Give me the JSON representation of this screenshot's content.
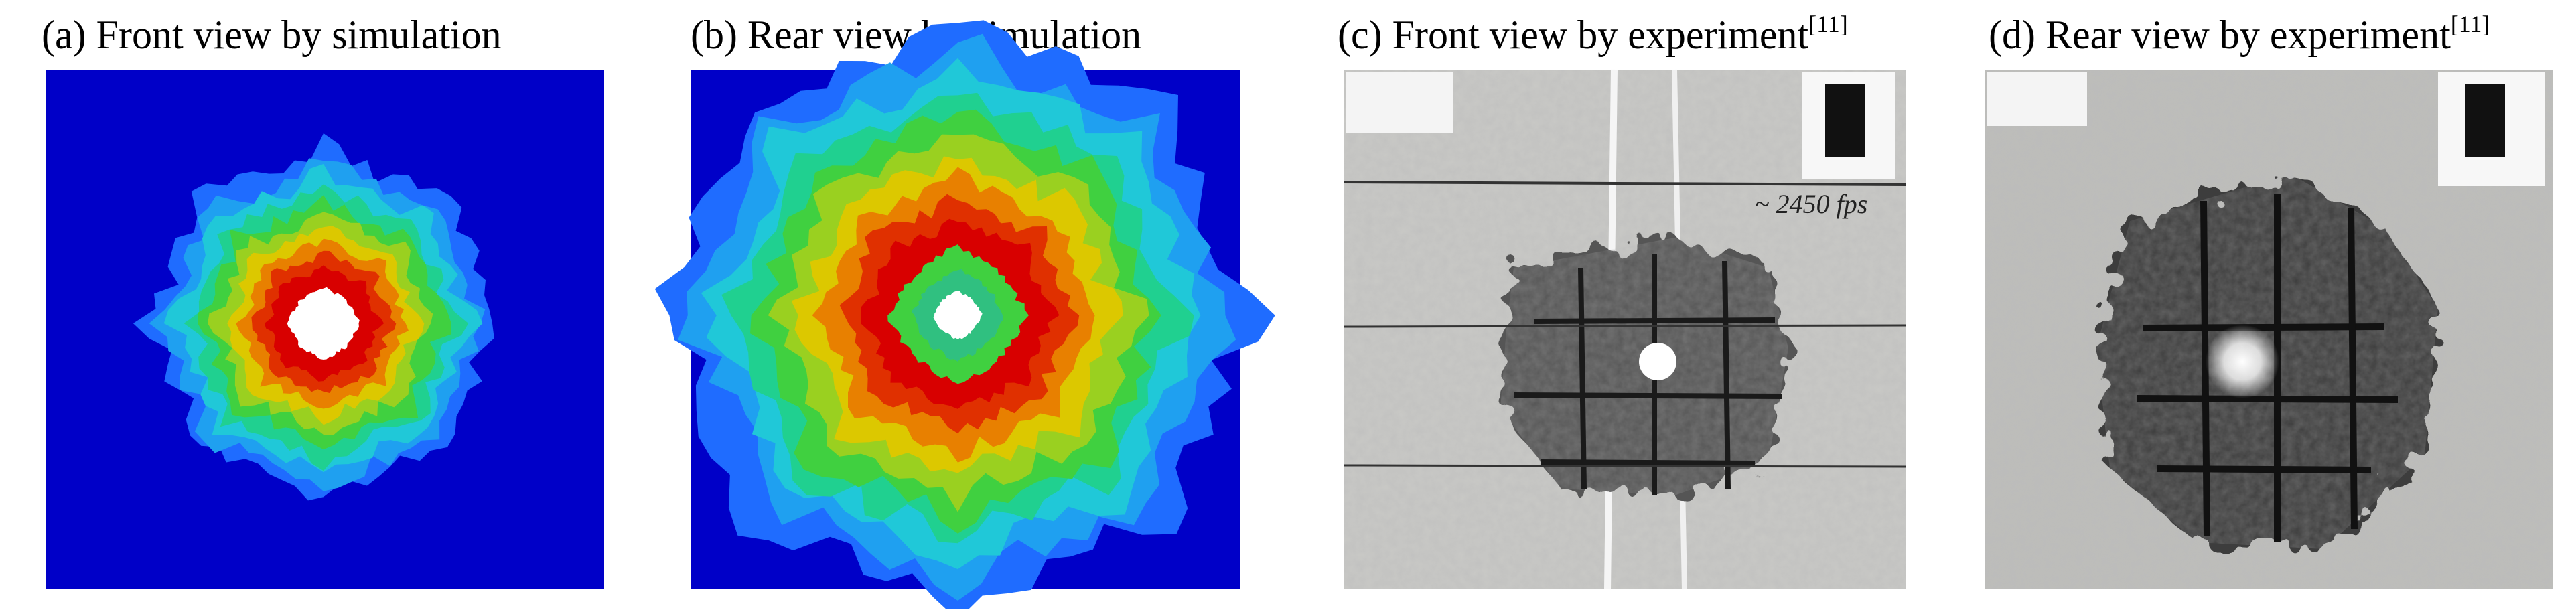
{
  "panels": [
    {
      "caption": "(a) Front view by simulation"
    },
    {
      "caption": "(b) Rear view by simulation"
    },
    {
      "caption": "(c) Front view by experiment",
      "citation": "[11]",
      "annotation": "~ 2450 fps"
    },
    {
      "caption": "(d) Rear view by experiment",
      "citation": "[11]"
    }
  ]
}
